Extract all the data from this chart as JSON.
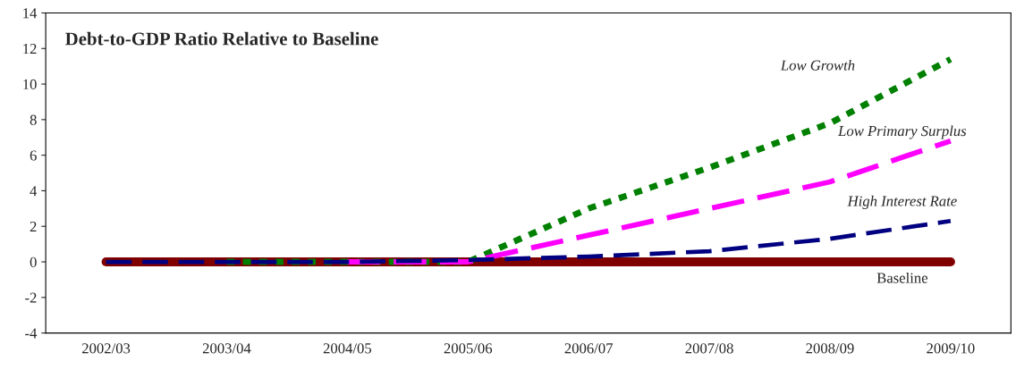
{
  "chart_data": {
    "type": "line",
    "title": "Debt-to-GDP Ratio Relative to Baseline",
    "categories": [
      "2002/03",
      "2003/04",
      "2004/05",
      "2005/06",
      "2006/07",
      "2007/08",
      "2008/09",
      "2009/10"
    ],
    "series": [
      {
        "name": "Low Growth",
        "color": "#008000",
        "line_style": "dotted",
        "values": [
          null,
          0,
          0,
          0,
          3.0,
          5.3,
          7.8,
          11.4
        ]
      },
      {
        "name": "Low Primary Surplus",
        "color": "#ff00ff",
        "line_style": "dashed",
        "values": [
          null,
          null,
          0,
          0,
          1.5,
          3.0,
          4.5,
          6.8
        ]
      },
      {
        "name": "High Interest Rate",
        "color": "#000080",
        "line_style": "dashed",
        "values": [
          0,
          0,
          0,
          0.1,
          0.3,
          0.6,
          1.3,
          2.3
        ]
      },
      {
        "name": "Baseline",
        "color": "#800000",
        "line_style": "solid",
        "values": [
          0,
          0,
          0,
          0,
          0,
          0,
          0,
          0
        ]
      }
    ],
    "ylim": [
      -4,
      14
    ],
    "yticks": [
      -4,
      -2,
      0,
      2,
      4,
      6,
      8,
      10,
      12,
      14
    ],
    "grid": false,
    "legend": false
  }
}
